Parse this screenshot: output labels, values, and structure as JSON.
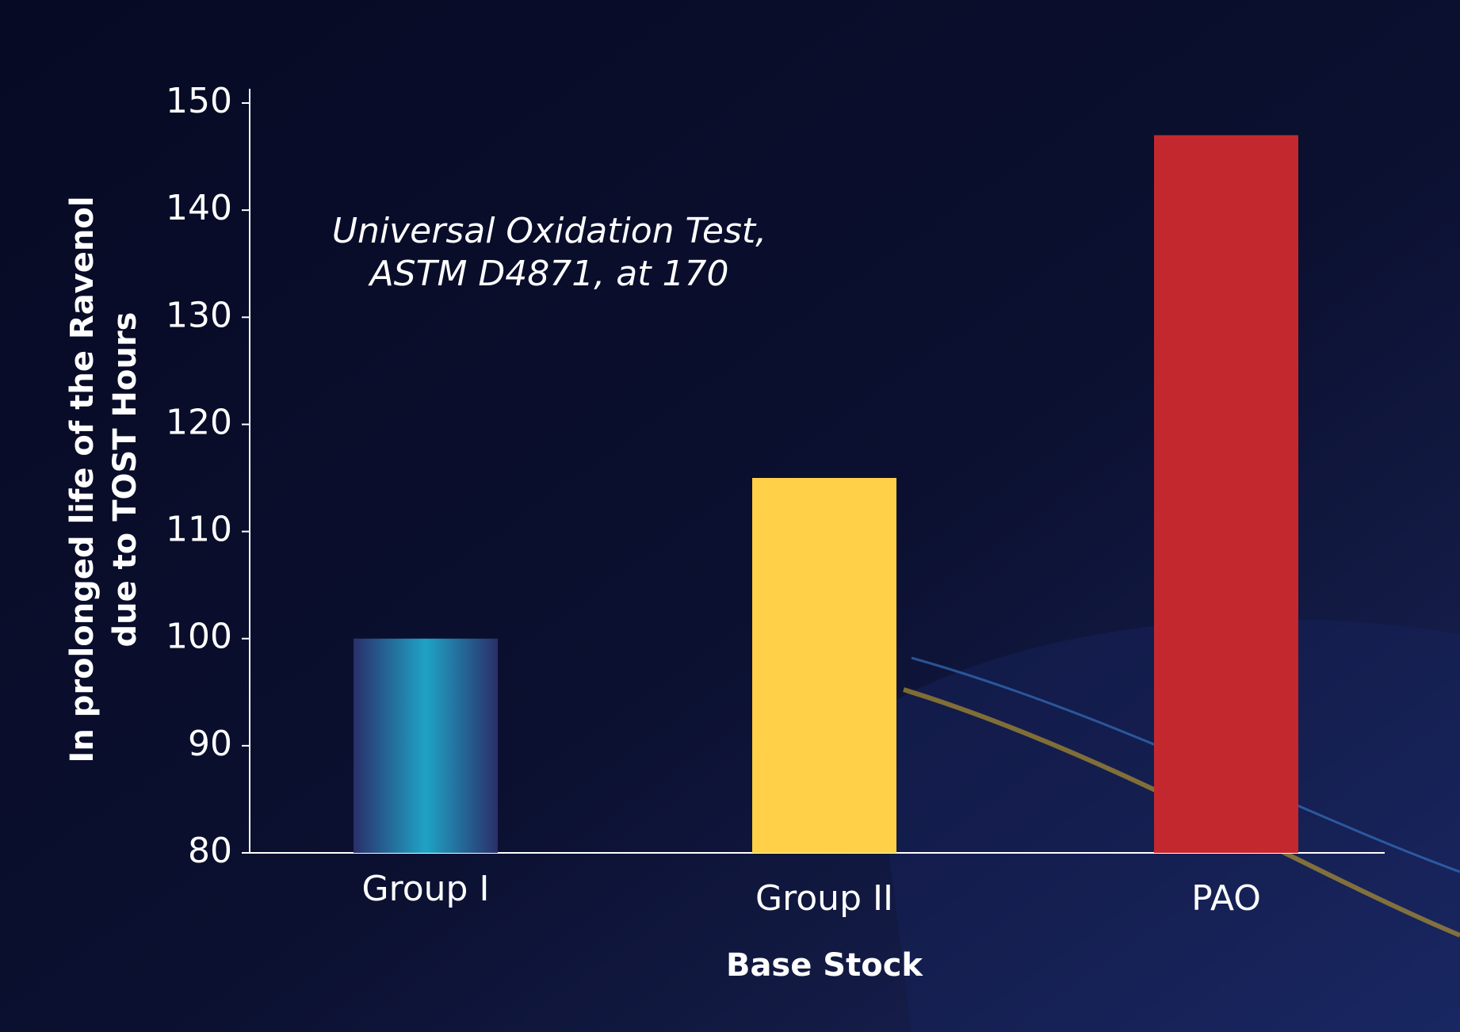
{
  "chart_data": {
    "type": "bar",
    "annotation": [
      "Universal Oxidation Test,",
      "ASTM D4871, at 170"
    ],
    "y_label": [
      "In prolonged life of the Ravenol",
      "due to TOST Hours"
    ],
    "x_label": "Base Stock",
    "categories": [
      "Group I",
      "Group II",
      "PAO"
    ],
    "values": [
      100,
      115,
      147
    ],
    "colors": [
      "#1fa3c6",
      "#ffd048",
      "#c4282f"
    ],
    "ylim": [
      80,
      150
    ],
    "yticks": [
      80,
      90,
      100,
      110,
      120,
      130,
      140,
      150
    ]
  }
}
